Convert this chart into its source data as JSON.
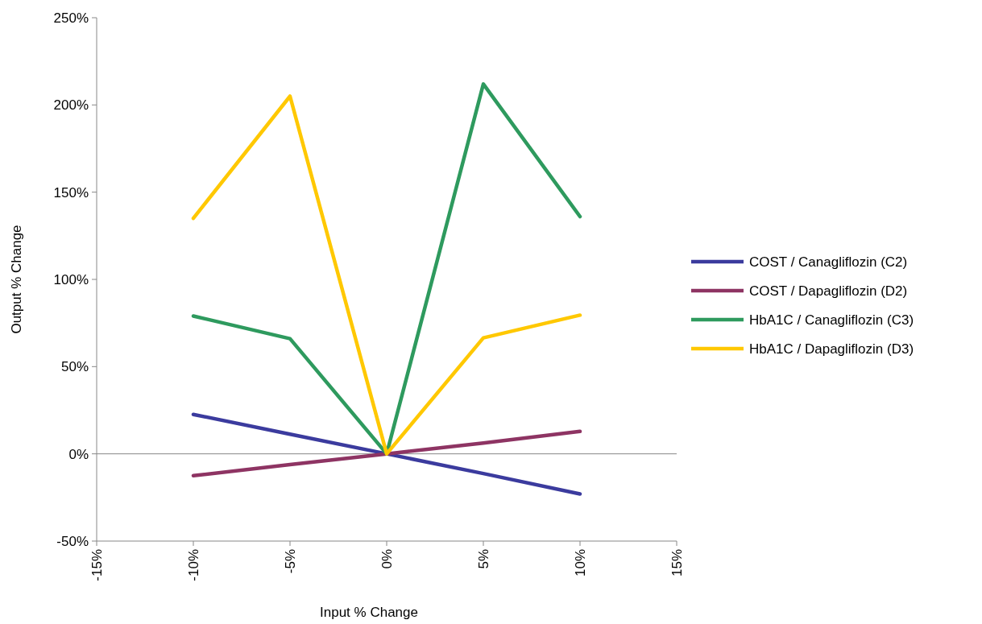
{
  "chart_data": {
    "type": "line",
    "xlabel": "Input % Change",
    "ylabel": "Output % Change",
    "x": [
      -10,
      -5,
      0,
      5,
      10
    ],
    "xlim": [
      -15,
      15
    ],
    "xticks": [
      {
        "value": -15,
        "label": "-15%"
      },
      {
        "value": -10,
        "label": "-10%"
      },
      {
        "value": -5,
        "label": "-5%"
      },
      {
        "value": 0,
        "label": "0%"
      },
      {
        "value": 5,
        "label": "5%"
      },
      {
        "value": 10,
        "label": "10%"
      },
      {
        "value": 15,
        "label": "15%"
      }
    ],
    "ylim": [
      -50,
      250
    ],
    "yticks": [
      {
        "value": -50,
        "label": "-50%"
      },
      {
        "value": 0,
        "label": "0%"
      },
      {
        "value": 50,
        "label": "50%"
      },
      {
        "value": 100,
        "label": "100%"
      },
      {
        "value": 150,
        "label": "150%"
      },
      {
        "value": 200,
        "label": "200%"
      },
      {
        "value": 250,
        "label": "250%"
      }
    ],
    "legend": "right",
    "marker": "none",
    "line_style": "solid",
    "grid": false,
    "ref_lines": [
      {
        "axis": "y",
        "value": 0,
        "color": "#888888"
      }
    ],
    "series": [
      {
        "name": "COST / Canagliflozin (C2)",
        "color": "#3b3b9e",
        "values": [
          22.6,
          11.3,
          0,
          -11.3,
          -23
        ]
      },
      {
        "name": "COST / Dapagliflozin (D2)",
        "color": "#8e3463",
        "values": [
          -12.5,
          -6.2,
          0,
          6.2,
          12.9
        ]
      },
      {
        "name": "HbA1C / Canagliflozin (C3)",
        "color": "#2e9a5e",
        "values": [
          79,
          66,
          0,
          212,
          136
        ]
      },
      {
        "name": "HbA1C / Dapagliflozin (D3)",
        "color": "#ffc800",
        "values": [
          135,
          205,
          0,
          66.5,
          79.5
        ]
      }
    ]
  }
}
